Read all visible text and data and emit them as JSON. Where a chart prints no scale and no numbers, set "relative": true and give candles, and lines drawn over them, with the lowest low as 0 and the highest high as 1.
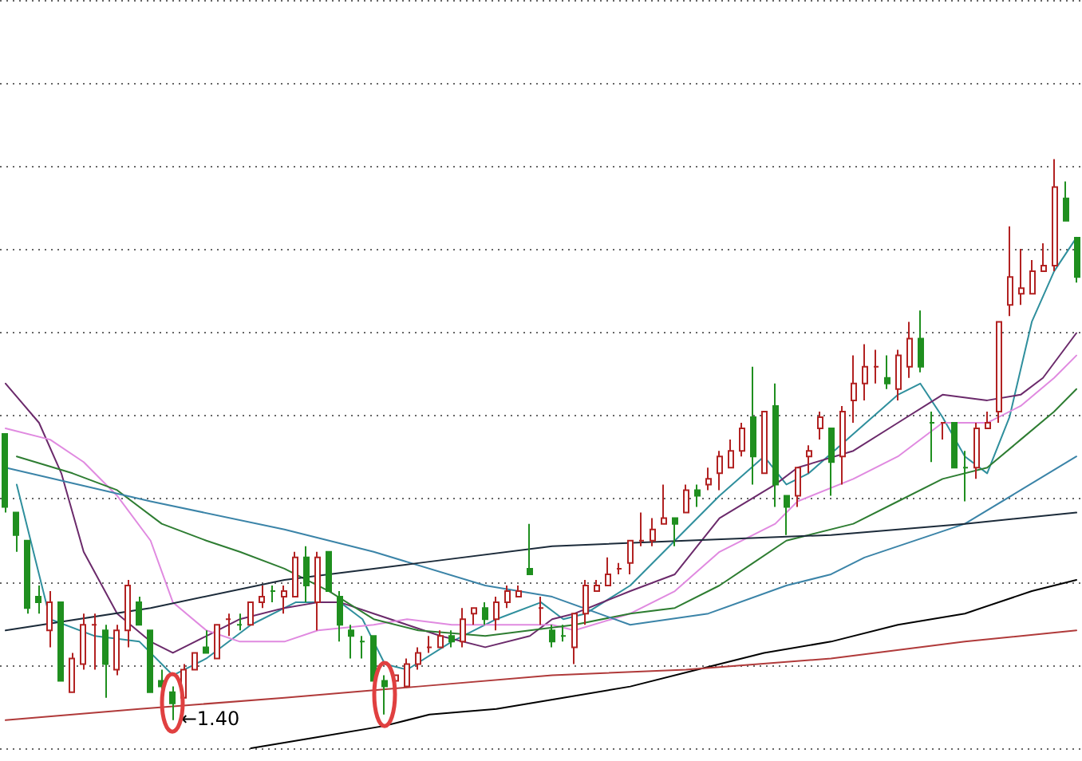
{
  "chart_data": {
    "type": "candlestick",
    "relative": true,
    "grid": "y",
    "marker": "none",
    "categories": [
      null,
      null,
      null,
      null,
      null,
      null,
      null,
      null,
      null,
      null,
      null,
      null,
      null,
      null,
      null,
      null,
      null,
      null,
      null,
      null,
      null,
      null,
      null,
      null,
      null,
      null,
      null,
      null,
      null,
      null,
      null,
      null,
      null,
      null,
      null,
      null,
      null,
      null,
      null,
      null,
      null,
      null,
      null,
      null,
      null,
      null,
      null,
      null,
      null,
      null,
      null,
      null,
      null,
      null,
      null,
      null,
      null,
      null,
      null,
      null,
      null,
      null,
      null,
      null,
      null,
      null,
      null,
      null,
      null,
      null,
      null,
      null,
      null,
      null,
      null,
      null,
      null,
      null,
      null,
      null,
      null,
      null,
      null,
      null,
      null,
      null,
      null,
      null,
      null,
      null,
      null,
      null,
      null,
      null,
      null,
      null,
      null
    ],
    "annotations": [
      "←1.40"
    ],
    "series": [
      {
        "ohlc": [
          [
            0.51,
            0.51,
            0.37,
            0.38
          ],
          [
            0.37,
            0.37,
            0.3,
            0.33
          ],
          [
            0.32,
            0.32,
            0.19,
            0.2
          ],
          [
            0.22,
            0.24,
            0.19,
            0.21
          ],
          [
            0.16,
            0.23,
            0.13,
            0.21
          ],
          [
            0.21,
            0.21,
            0.07,
            0.07
          ],
          [
            0.05,
            0.12,
            0.05,
            0.11
          ],
          [
            0.1,
            0.19,
            0.09,
            0.17
          ],
          [
            0.17,
            0.19,
            0.09,
            0.17
          ],
          [
            0.16,
            0.17,
            0.04,
            0.1
          ],
          [
            0.09,
            0.17,
            0.08,
            0.16
          ],
          [
            0.16,
            0.25,
            0.13,
            0.24
          ],
          [
            0.21,
            0.22,
            0.17,
            0.17
          ],
          [
            0.16,
            0.16,
            0.05,
            0.05
          ],
          [
            0.07,
            0.09,
            0.05,
            0.06
          ],
          [
            0.05,
            0.06,
            0,
            0.03
          ],
          [
            0.04,
            0.1,
            0.04,
            0.09
          ],
          [
            0.09,
            0.12,
            0.09,
            0.12
          ],
          [
            0.13,
            0.16,
            0.12,
            0.12
          ],
          [
            0.11,
            0.17,
            0.11,
            0.17
          ],
          [
            0.18,
            0.19,
            0.15,
            0.18
          ],
          [
            0.17,
            0.19,
            0.16,
            0.17
          ],
          [
            0.17,
            0.21,
            0.17,
            0.21
          ],
          [
            0.21,
            0.24,
            0.2,
            0.22
          ],
          [
            0.23,
            0.24,
            0.21,
            0.23
          ],
          [
            0.22,
            0.24,
            0.19,
            0.23
          ],
          [
            0.22,
            0.3,
            0.22,
            0.29
          ],
          [
            0.29,
            0.31,
            0.21,
            0.24
          ],
          [
            0.21,
            0.3,
            0.16,
            0.29
          ],
          [
            0.3,
            0.3,
            0.23,
            0.23
          ],
          [
            0.22,
            0.23,
            0.14,
            0.17
          ],
          [
            0.16,
            0.17,
            0.11,
            0.15
          ],
          [
            0.14,
            0.15,
            0.11,
            0.14
          ],
          [
            0.15,
            0.15,
            0.07,
            0.07
          ],
          [
            0.07,
            0.08,
            0.01,
            0.06
          ],
          [
            0.07,
            0.08,
            0.05,
            0.08
          ],
          [
            0.06,
            0.11,
            0.06,
            0.1
          ],
          [
            0.1,
            0.13,
            0.09,
            0.12
          ],
          [
            0.13,
            0.15,
            0.12,
            0.13
          ],
          [
            0.13,
            0.16,
            0.13,
            0.15
          ],
          [
            0.15,
            0.16,
            0.13,
            0.14
          ],
          [
            0.14,
            0.2,
            0.13,
            0.18
          ],
          [
            0.19,
            0.2,
            0.17,
            0.2
          ],
          [
            0.2,
            0.21,
            0.17,
            0.18
          ],
          [
            0.18,
            0.22,
            0.16,
            0.21
          ],
          [
            0.21,
            0.24,
            0.2,
            0.23
          ],
          [
            0.22,
            0.24,
            0.22,
            0.23
          ],
          [
            0.27,
            0.35,
            0.26,
            0.26
          ],
          [
            0.2,
            0.22,
            0.17,
            0.2
          ],
          [
            0.16,
            0.17,
            0.13,
            0.14
          ],
          [
            0.15,
            0.17,
            0.14,
            0.15
          ],
          [
            0.13,
            0.19,
            0.1,
            0.19
          ],
          [
            0.19,
            0.25,
            0.17,
            0.24
          ],
          [
            0.23,
            0.25,
            0.23,
            0.24
          ],
          [
            0.24,
            0.29,
            0.24,
            0.26
          ],
          [
            0.27,
            0.28,
            0.26,
            0.27
          ],
          [
            0.28,
            0.32,
            0.26,
            0.32
          ],
          [
            0.32,
            0.37,
            0.31,
            0.32
          ],
          [
            0.32,
            0.36,
            0.31,
            0.34
          ],
          [
            0.35,
            0.42,
            0.35,
            0.36
          ],
          [
            0.36,
            0.36,
            0.31,
            0.35
          ],
          [
            0.37,
            0.42,
            0.37,
            0.41
          ],
          [
            0.41,
            0.42,
            0.38,
            0.4
          ],
          [
            0.42,
            0.45,
            0.41,
            0.43
          ],
          [
            0.44,
            0.48,
            0.41,
            0.47
          ],
          [
            0.45,
            0.5,
            0.45,
            0.48
          ],
          [
            0.48,
            0.53,
            0.47,
            0.52
          ],
          [
            0.54,
            0.63,
            0.42,
            0.47
          ],
          [
            0.44,
            0.55,
            0.44,
            0.55
          ],
          [
            0.56,
            0.6,
            0.38,
            0.42
          ],
          [
            0.4,
            0.4,
            0.33,
            0.38
          ],
          [
            0.4,
            0.45,
            0.38,
            0.45
          ],
          [
            0.47,
            0.49,
            0.44,
            0.48
          ],
          [
            0.52,
            0.55,
            0.5,
            0.54
          ],
          [
            0.52,
            0.52,
            0.4,
            0.46
          ],
          [
            0.47,
            0.56,
            0.42,
            0.55
          ],
          [
            0.57,
            0.65,
            0.53,
            0.6
          ],
          [
            0.6,
            0.67,
            0.57,
            0.63
          ],
          [
            0.63,
            0.66,
            0.6,
            0.63
          ],
          [
            0.61,
            0.65,
            0.59,
            0.6
          ],
          [
            0.59,
            0.66,
            0.57,
            0.65
          ],
          [
            0.63,
            0.71,
            0.61,
            0.68
          ],
          [
            0.68,
            0.73,
            0.62,
            0.63
          ],
          [
            0.53,
            0.55,
            0.46,
            0.53
          ],
          [
            0.53,
            0.53,
            0.5,
            0.53
          ],
          [
            0.53,
            0.53,
            0.45,
            0.45
          ],
          [
            0.45,
            0.48,
            0.39,
            0.45
          ],
          [
            0.45,
            0.53,
            0.43,
            0.52
          ],
          [
            0.52,
            0.55,
            0.52,
            0.53
          ],
          [
            0.55,
            0.71,
            0.53,
            0.71
          ],
          [
            0.74,
            0.88,
            0.72,
            0.79
          ],
          [
            0.76,
            0.84,
            0.74,
            0.77
          ],
          [
            0.76,
            0.82,
            0.76,
            0.8
          ],
          [
            0.8,
            0.85,
            0.8,
            0.81
          ],
          [
            0.81,
            1,
            0.8,
            0.95
          ],
          [
            0.93,
            0.96,
            0.89,
            0.89
          ],
          [
            0.86,
            0.86,
            0.78,
            0.79
          ]
        ],
        "colors": [
          "#1f8f1f",
          "#1f8f1f",
          "#1f8f1f",
          "#1f8f1f",
          "#b22222",
          "#1f8f1f",
          "#b22222",
          "#b22222",
          "#b22222",
          "#1f8f1f",
          "#b22222",
          "#b22222",
          "#1f8f1f",
          "#1f8f1f",
          "#1f8f1f",
          "#1f8f1f",
          "#b22222",
          "#b22222",
          "#1f8f1f",
          "#b22222",
          "#b22222",
          "#1f8f1f",
          "#b22222",
          "#b22222",
          "#1f8f1f",
          "#b22222",
          "#b22222",
          "#1f8f1f",
          "#b22222",
          "#1f8f1f",
          "#1f8f1f",
          "#1f8f1f",
          "#1f8f1f",
          "#1f8f1f",
          "#1f8f1f",
          "#b22222",
          "#b22222",
          "#b22222",
          "#b22222",
          "#b22222",
          "#1f8f1f",
          "#b22222",
          "#b22222",
          "#1f8f1f",
          "#b22222",
          "#b22222",
          "#b22222",
          "#1f8f1f",
          "#b22222",
          "#1f8f1f",
          "#1f8f1f",
          "#b22222",
          "#b22222",
          "#b22222",
          "#b22222",
          "#b22222",
          "#b22222",
          "#b22222",
          "#b22222",
          "#b22222",
          "#1f8f1f",
          "#b22222",
          "#1f8f1f",
          "#b22222",
          "#b22222",
          "#b22222",
          "#b22222",
          "#1f8f1f",
          "#b22222",
          "#1f8f1f",
          "#1f8f1f",
          "#b22222",
          "#b22222",
          "#b22222",
          "#1f8f1f",
          "#b22222",
          "#b22222",
          "#b22222",
          "#b22222",
          "#1f8f1f",
          "#b22222",
          "#b22222",
          "#1f8f1f",
          "#1f8f1f",
          "#b22222",
          "#1f8f1f",
          "#1f8f1f",
          "#b22222",
          "#b22222",
          "#b22222",
          "#b22222",
          "#b22222",
          "#b22222",
          "#b22222",
          "#b22222",
          "#1f8f1f",
          "#1f8f1f"
        ]
      },
      {
        "type": "line",
        "color": "#2f8f9d",
        "values": [
          null,
          0.42,
          null,
          null,
          0.18,
          null,
          null,
          null,
          0.15,
          null,
          null,
          null,
          0.14,
          null,
          null,
          0.08,
          null,
          null,
          0.11,
          null,
          null,
          null,
          0.17,
          null,
          null,
          null,
          0.21,
          null,
          null,
          null,
          0.21,
          null,
          0.18,
          null,
          0.1,
          null,
          0.09,
          null,
          null,
          null,
          0.14,
          null,
          null,
          null,
          0.18,
          null,
          null,
          null,
          0.21,
          null,
          0.18,
          null,
          0.19,
          null,
          null,
          null,
          0.24,
          null,
          null,
          null,
          0.32,
          null,
          null,
          null,
          0.4,
          null,
          null,
          null,
          0.47,
          null,
          0.42,
          null,
          0.44,
          null,
          null,
          null,
          0.51,
          null,
          null,
          null,
          0.58,
          null,
          0.6,
          null,
          0.54,
          null,
          0.47,
          null,
          0.44,
          null,
          0.54,
          null,
          0.71,
          null,
          0.8,
          null,
          0.86
        ]
      },
      {
        "type": "line",
        "color": "#6b2a6b",
        "values": [
          0.6,
          null,
          null,
          0.53,
          null,
          0.44,
          null,
          0.3,
          null,
          null,
          0.19,
          null,
          null,
          0.14,
          null,
          0.12,
          null,
          null,
          0.15,
          null,
          null,
          0.18,
          null,
          null,
          null,
          0.2,
          null,
          null,
          0.21,
          null,
          0.21,
          null,
          null,
          0.19,
          null,
          null,
          0.17,
          null,
          null,
          0.15,
          null,
          null,
          null,
          0.13,
          null,
          null,
          null,
          0.15,
          null,
          0.18,
          null,
          0.19,
          null,
          null,
          null,
          null,
          0.23,
          null,
          null,
          null,
          0.26,
          null,
          null,
          null,
          0.36,
          null,
          null,
          null,
          null,
          0.42,
          null,
          0.45,
          null,
          null,
          null,
          null,
          0.48,
          null,
          null,
          null,
          0.53,
          null,
          null,
          null,
          0.58,
          null,
          null,
          null,
          0.57,
          null,
          null,
          0.58,
          null,
          0.61,
          null,
          null,
          0.69
        ]
      },
      {
        "type": "line",
        "color": "#e08ae0",
        "values": [
          0.52,
          null,
          null,
          null,
          0.5,
          null,
          null,
          0.46,
          null,
          null,
          0.4,
          null,
          null,
          0.32,
          null,
          0.21,
          null,
          null,
          0.16,
          null,
          null,
          0.14,
          null,
          null,
          null,
          0.14,
          null,
          null,
          0.16,
          null,
          null,
          null,
          null,
          0.17,
          null,
          null,
          0.18,
          null,
          null,
          null,
          0.17,
          null,
          null,
          null,
          null,
          null,
          0.17,
          null,
          null,
          0.17,
          null,
          0.16,
          null,
          null,
          null,
          null,
          0.19,
          null,
          null,
          null,
          0.23,
          null,
          null,
          null,
          0.3,
          null,
          null,
          null,
          null,
          0.35,
          null,
          0.39,
          null,
          null,
          null,
          null,
          0.43,
          null,
          null,
          null,
          0.47,
          null,
          null,
          null,
          0.53,
          null,
          null,
          null,
          0.53,
          null,
          null,
          0.56,
          null,
          null,
          0.61,
          null,
          0.65
        ]
      },
      {
        "type": "line",
        "color": "#2e7d32",
        "values": [
          null,
          0.47,
          null,
          null,
          null,
          null,
          0.44,
          null,
          null,
          null,
          0.41,
          null,
          null,
          null,
          0.35,
          null,
          null,
          null,
          0.32,
          null,
          null,
          0.3,
          null,
          null,
          null,
          0.27,
          null,
          null,
          null,
          0.23,
          null,
          null,
          null,
          0.18,
          null,
          null,
          null,
          0.16,
          null,
          null,
          null,
          null,
          null,
          0.15,
          null,
          null,
          null,
          0.16,
          null,
          null,
          null,
          0.17,
          null,
          null,
          null,
          null,
          0.19,
          null,
          null,
          null,
          0.2,
          null,
          null,
          null,
          0.24,
          null,
          null,
          0.28,
          null,
          null,
          0.32,
          null,
          0.33,
          null,
          null,
          null,
          0.35,
          null,
          null,
          null,
          0.39,
          null,
          null,
          null,
          0.43,
          null,
          null,
          null,
          0.45,
          null,
          null,
          0.5,
          null,
          null,
          0.55,
          null,
          0.59
        ]
      },
      {
        "type": "line",
        "color": "#3b84a8",
        "values": [
          0.45,
          null,
          null,
          null,
          null,
          null,
          null,
          null,
          null,
          null,
          null,
          null,
          null,
          0.39,
          null,
          null,
          null,
          null,
          null,
          null,
          null,
          null,
          null,
          null,
          null,
          0.34,
          null,
          null,
          null,
          null,
          null,
          null,
          null,
          0.3,
          null,
          null,
          null,
          null,
          null,
          null,
          null,
          null,
          null,
          0.24,
          null,
          null,
          null,
          null,
          null,
          0.22,
          null,
          null,
          null,
          null,
          null,
          null,
          0.17,
          null,
          null,
          null,
          null,
          null,
          null,
          0.19,
          null,
          null,
          null,
          null,
          null,
          null,
          0.24,
          null,
          null,
          null,
          0.26,
          null,
          null,
          0.29,
          null,
          null,
          null,
          null,
          null,
          null,
          null,
          null,
          0.35,
          null,
          null,
          null,
          null,
          0.41,
          null,
          null,
          null,
          null,
          0.47
        ]
      },
      {
        "type": "line",
        "color": "#1c2b3a",
        "values": [
          0.16,
          null,
          null,
          null,
          null,
          null,
          null,
          null,
          null,
          null,
          null,
          null,
          null,
          0.2,
          null,
          null,
          null,
          null,
          null,
          null,
          null,
          null,
          null,
          null,
          null,
          0.25,
          null,
          null,
          null,
          null,
          null,
          null,
          null,
          null,
          null,
          null,
          null,
          0.28,
          null,
          null,
          null,
          null,
          null,
          null,
          null,
          null,
          null,
          null,
          null,
          0.31,
          null,
          null,
          null,
          null,
          null,
          null,
          null,
          null,
          null,
          null,
          null,
          0.32,
          null,
          null,
          null,
          null,
          null,
          null,
          null,
          null,
          null,
          null,
          null,
          null,
          0.33,
          null,
          null,
          null,
          null,
          null,
          null,
          null,
          null,
          null,
          null,
          null,
          0.35,
          null,
          null,
          null,
          null,
          null,
          null,
          null,
          null,
          null,
          0.37
        ]
      },
      {
        "type": "line",
        "color": "#000000",
        "values": [
          null,
          null,
          null,
          null,
          null,
          null,
          null,
          null,
          null,
          null,
          null,
          null,
          null,
          null,
          null,
          null,
          null,
          null,
          null,
          null,
          null,
          null,
          -0.05,
          null,
          null,
          null,
          null,
          null,
          -0.03,
          null,
          null,
          null,
          null,
          null,
          -0.01,
          null,
          null,
          null,
          0.01,
          null,
          null,
          null,
          null,
          null,
          0.02,
          null,
          null,
          null,
          null,
          null,
          0.04,
          null,
          null,
          null,
          null,
          null,
          0.06,
          null,
          null,
          null,
          null,
          null,
          0.09,
          null,
          null,
          null,
          null,
          null,
          0.12,
          null,
          null,
          null,
          null,
          null,
          0.14,
          null,
          null,
          null,
          null,
          null,
          0.17,
          null,
          null,
          null,
          null,
          null,
          0.19,
          null,
          null,
          null,
          null,
          null,
          0.23,
          null,
          null,
          null,
          0.25
        ]
      },
      {
        "type": "line",
        "color": "#b03a3a",
        "values": [
          0,
          null,
          null,
          null,
          null,
          null,
          null,
          null,
          null,
          null,
          null,
          null,
          0.02,
          null,
          null,
          null,
          null,
          null,
          null,
          null,
          null,
          null,
          null,
          null,
          null,
          0.04,
          null,
          null,
          null,
          null,
          null,
          null,
          null,
          null,
          null,
          null,
          null,
          0.06,
          null,
          null,
          null,
          null,
          null,
          null,
          null,
          null,
          null,
          null,
          null,
          0.08,
          null,
          null,
          null,
          null,
          null,
          null,
          null,
          null,
          null,
          null,
          null,
          0.09,
          null,
          null,
          null,
          null,
          null,
          null,
          null,
          null,
          null,
          null,
          null,
          null,
          0.11,
          null,
          null,
          null,
          null,
          null,
          null,
          null,
          null,
          null,
          null,
          null,
          0.14,
          null,
          null,
          null,
          null,
          null,
          null,
          null,
          null,
          null,
          0.16
        ]
      }
    ]
  }
}
